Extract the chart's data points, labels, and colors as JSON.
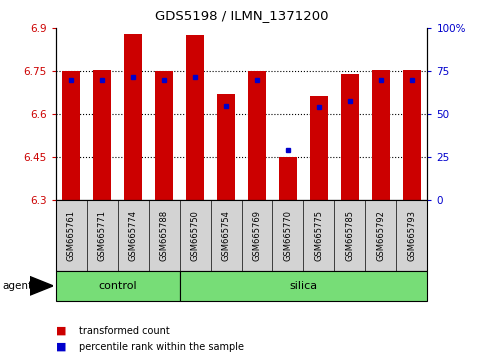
{
  "title": "GDS5198 / ILMN_1371200",
  "samples": [
    "GSM665761",
    "GSM665771",
    "GSM665774",
    "GSM665788",
    "GSM665750",
    "GSM665754",
    "GSM665769",
    "GSM665770",
    "GSM665775",
    "GSM665785",
    "GSM665792",
    "GSM665793"
  ],
  "bar_values": [
    6.75,
    6.755,
    6.88,
    6.75,
    6.875,
    6.67,
    6.75,
    6.45,
    6.665,
    6.74,
    6.755,
    6.755
  ],
  "percentile_values": [
    6.72,
    6.72,
    6.73,
    6.72,
    6.73,
    6.63,
    6.72,
    6.475,
    6.625,
    6.645,
    6.72,
    6.72
  ],
  "bar_bottom": 6.3,
  "ylim": [
    6.3,
    6.9
  ],
  "yticks": [
    6.3,
    6.45,
    6.6,
    6.75,
    6.9
  ],
  "ytick_labels": [
    "6.3",
    "6.45",
    "6.6",
    "6.75",
    "6.9"
  ],
  "right_yticks": [
    0,
    25,
    50,
    75,
    100
  ],
  "right_ytick_labels": [
    "0",
    "25",
    "50",
    "75",
    "100%"
  ],
  "bar_color": "#cc0000",
  "percentile_color": "#0000cc",
  "control_samples": 4,
  "agent_label": "agent",
  "legend_bar_label": "transformed count",
  "legend_pct_label": "percentile rank within the sample",
  "label_color_left": "#cc0000",
  "label_color_right": "#0000cc",
  "bar_width": 0.6,
  "grid_dotted_at": [
    6.45,
    6.6,
    6.75
  ],
  "green_color": "#77dd77"
}
